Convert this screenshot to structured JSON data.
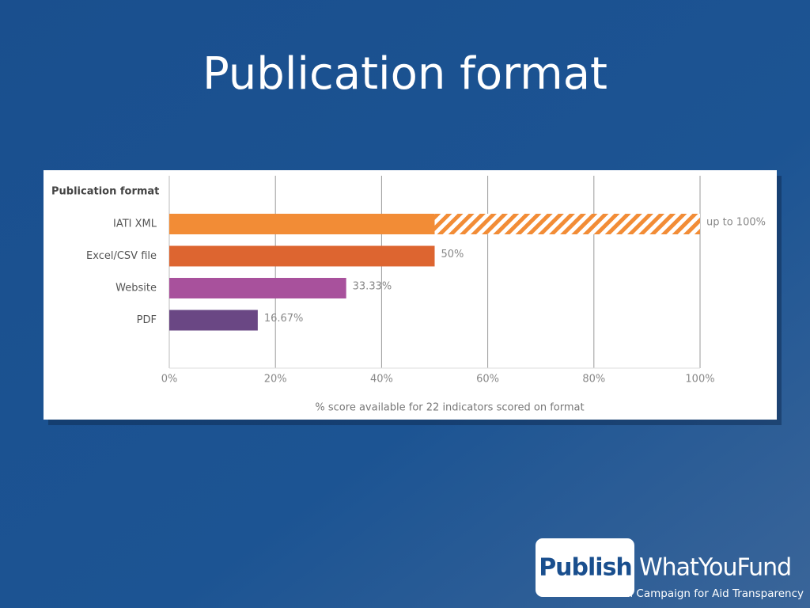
{
  "chart_data": {
    "type": "bar",
    "title": "Publication format",
    "chart_label": "Publication format",
    "categories": [
      "IATI XML",
      "Excel/CSV file",
      "Website",
      "PDF"
    ],
    "values": [
      100,
      50,
      33.33,
      16.67
    ],
    "value_labels": [
      "up to 100%",
      "50%",
      "33.33%",
      "16.67%"
    ],
    "hatched_from": [
      50,
      null,
      null,
      null
    ],
    "colors": [
      "#f28c36",
      "#dd6530",
      "#a8519c",
      "#6a4784"
    ],
    "xlim": [
      0,
      100
    ],
    "xticks": [
      {
        "value": 0,
        "label": "0%"
      },
      {
        "value": 20,
        "label": "20%"
      },
      {
        "value": 40,
        "label": "40%"
      },
      {
        "value": 60,
        "label": "60%"
      },
      {
        "value": 80,
        "label": "80%"
      },
      {
        "value": 100,
        "label": "100%"
      }
    ],
    "xlabel": "% score available for 22 indicators scored on format",
    "grid": true
  },
  "logo": {
    "brand_box": "Publish",
    "brand_rest": "WhatYouFund",
    "tagline": "The Global Campaign for Aid Transparency"
  }
}
